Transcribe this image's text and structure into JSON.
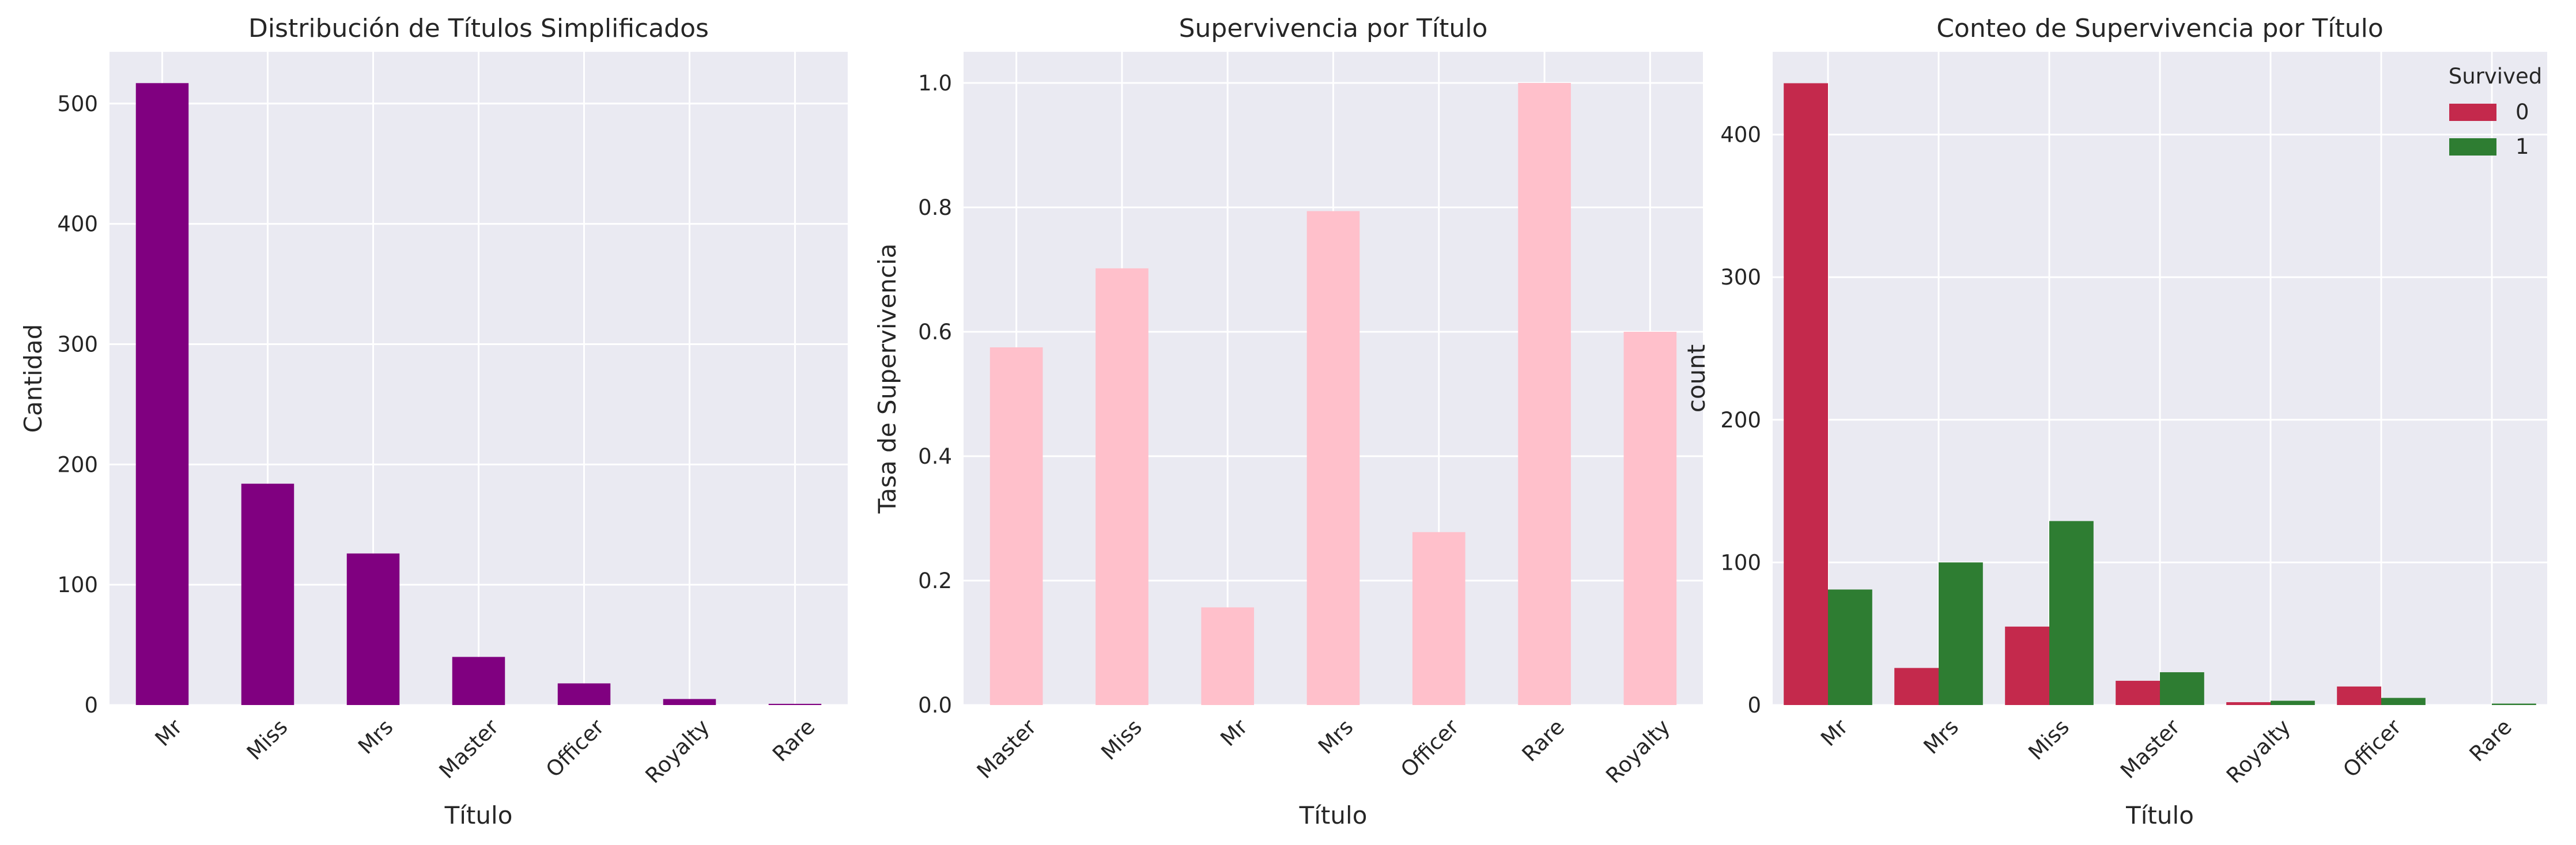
{
  "chart_data": [
    {
      "type": "bar",
      "title": "Distribución de Títulos Simplificados",
      "xlabel": "Título",
      "ylabel": "Cantidad",
      "categories": [
        "Mr",
        "Miss",
        "Mrs",
        "Master",
        "Officer",
        "Royalty",
        "Rare"
      ],
      "values": [
        517,
        184,
        126,
        40,
        18,
        5,
        1
      ],
      "ylim": [
        0,
        543
      ],
      "yticks": [
        0,
        100,
        200,
        300,
        400,
        500
      ],
      "color": "#800080",
      "grid": true
    },
    {
      "type": "bar",
      "title": "Supervivencia por Título",
      "xlabel": "Título",
      "ylabel": "Tasa de Supervivencia",
      "categories": [
        "Master",
        "Miss",
        "Mr",
        "Mrs",
        "Officer",
        "Rare",
        "Royalty"
      ],
      "values": [
        0.575,
        0.702,
        0.157,
        0.794,
        0.278,
        1.0,
        0.6
      ],
      "ylim": [
        0,
        1.05
      ],
      "yticks": [
        "0.0",
        "0.2",
        "0.4",
        "0.6",
        "0.8",
        "1.0"
      ],
      "color": "#ffc0cb",
      "grid": true
    },
    {
      "type": "bar",
      "title": "Conteo de Supervivencia por Título",
      "xlabel": "Título",
      "ylabel": "count",
      "categories": [
        "Mr",
        "Mrs",
        "Miss",
        "Master",
        "Royalty",
        "Officer",
        "Rare"
      ],
      "series": [
        {
          "name": "0",
          "values": [
            436,
            26,
            55,
            17,
            2,
            13,
            0
          ],
          "color": "#c4294c"
        },
        {
          "name": "1",
          "values": [
            81,
            100,
            129,
            23,
            3,
            5,
            1
          ],
          "color": "#2e7d32"
        }
      ],
      "legend_title": "Survived",
      "legend_position": "top-right",
      "ylim": [
        0,
        458
      ],
      "yticks": [
        0,
        100,
        200,
        300,
        400
      ],
      "grid": true
    }
  ]
}
